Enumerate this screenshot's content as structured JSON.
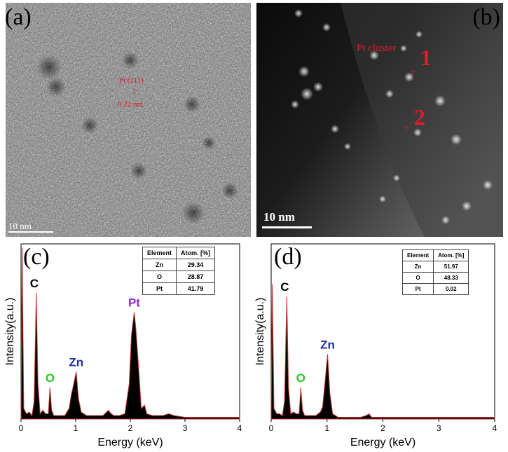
{
  "panels": {
    "a": {
      "label": "(a)",
      "scalebar": "10 nm",
      "lattice_label": "Pt (111)",
      "lattice_spacing": "0.22 nm"
    },
    "b": {
      "label": "(b)",
      "scalebar": "10 nm",
      "cluster_label": "Pt cluster",
      "point1": "1",
      "point2": "2"
    },
    "c": {
      "label": "(c)",
      "table": {
        "headers": [
          "Element",
          "Atom. [%]"
        ],
        "rows": [
          [
            "Zn",
            "29.34"
          ],
          [
            "O",
            "28.87"
          ],
          [
            "Pt",
            "41.79"
          ]
        ]
      }
    },
    "d": {
      "label": "(d)",
      "table": {
        "headers": [
          "Element",
          "Atom. [%]"
        ],
        "rows": [
          [
            "Zn",
            "51.97"
          ],
          [
            "O",
            "48.33"
          ],
          [
            "Pt",
            "0.02"
          ]
        ]
      }
    }
  },
  "colors": {
    "annotation_red": "#e01b2a",
    "spectrum_line": "#c0392b",
    "peak_c": "#000000",
    "peak_o": "#22cc22",
    "peak_zn": "#1f2fa8",
    "peak_pt": "#8e2bc9"
  },
  "chart_data": [
    {
      "type": "area",
      "panel": "c",
      "xlabel": "Energy (keV)",
      "ylabel": "Intensity(a.u.)",
      "xlim": [
        0,
        4
      ],
      "xticks": [
        "0",
        "1",
        "2",
        "3",
        "4"
      ],
      "peaks": [
        {
          "label": "C",
          "x": 0.28,
          "y": 0.72
        },
        {
          "label": "O",
          "x": 0.53,
          "y": 0.18
        },
        {
          "label": "Zn",
          "x": 1.01,
          "y": 0.27
        },
        {
          "label": "Pt",
          "x": 2.07,
          "y": 0.61
        }
      ],
      "series": [
        {
          "x": [
            0,
            0.02,
            0.05,
            0.1,
            0.15,
            0.2,
            0.24,
            0.28,
            0.31,
            0.35,
            0.4,
            0.45,
            0.5,
            0.53,
            0.56,
            0.6,
            0.7,
            0.8,
            0.88,
            0.92,
            0.95,
            1.01,
            1.05,
            1.1,
            1.2,
            1.3,
            1.4,
            1.5,
            1.6,
            1.65,
            1.7,
            1.8,
            1.9,
            1.98,
            2.02,
            2.07,
            2.1,
            2.15,
            2.2,
            2.26,
            2.3,
            2.4,
            2.5,
            2.6,
            2.7,
            2.8,
            3.0,
            3.5,
            4.0
          ],
          "y": [
            0.02,
            0.98,
            0.06,
            0.03,
            0.04,
            0.02,
            0.1,
            0.72,
            0.2,
            0.03,
            0.05,
            0.03,
            0.03,
            0.18,
            0.05,
            0.02,
            0.02,
            0.02,
            0.06,
            0.14,
            0.18,
            0.27,
            0.12,
            0.04,
            0.02,
            0.02,
            0.02,
            0.02,
            0.05,
            0.03,
            0.02,
            0.02,
            0.03,
            0.2,
            0.48,
            0.61,
            0.52,
            0.3,
            0.06,
            0.08,
            0.03,
            0.02,
            0.02,
            0.02,
            0.03,
            0.02,
            0.01,
            0.01,
            0.01
          ]
        }
      ]
    },
    {
      "type": "area",
      "panel": "d",
      "xlabel": "Energy (keV)",
      "ylabel": "Intensity(a.u.)",
      "xlim": [
        0,
        4
      ],
      "xticks": [
        "0",
        "1",
        "2",
        "3",
        "4"
      ],
      "peaks": [
        {
          "label": "C",
          "x": 0.28,
          "y": 0.7
        },
        {
          "label": "O",
          "x": 0.53,
          "y": 0.18
        },
        {
          "label": "Zn",
          "x": 1.01,
          "y": 0.37
        }
      ],
      "series": [
        {
          "x": [
            0,
            0.02,
            0.05,
            0.1,
            0.15,
            0.2,
            0.24,
            0.28,
            0.31,
            0.35,
            0.4,
            0.45,
            0.5,
            0.53,
            0.56,
            0.6,
            0.7,
            0.8,
            0.88,
            0.92,
            0.96,
            1.01,
            1.05,
            1.1,
            1.2,
            1.4,
            1.6,
            1.7,
            1.75,
            1.8,
            2.0,
            2.5,
            3.0,
            3.5,
            4.0
          ],
          "y": [
            0.02,
            0.77,
            0.06,
            0.03,
            0.03,
            0.02,
            0.1,
            0.7,
            0.18,
            0.03,
            0.04,
            0.03,
            0.03,
            0.18,
            0.05,
            0.02,
            0.02,
            0.02,
            0.04,
            0.07,
            0.2,
            0.37,
            0.15,
            0.03,
            0.01,
            0.01,
            0.01,
            0.02,
            0.03,
            0.01,
            0.01,
            0.01,
            0.01,
            0.01,
            0.01
          ]
        }
      ]
    }
  ]
}
